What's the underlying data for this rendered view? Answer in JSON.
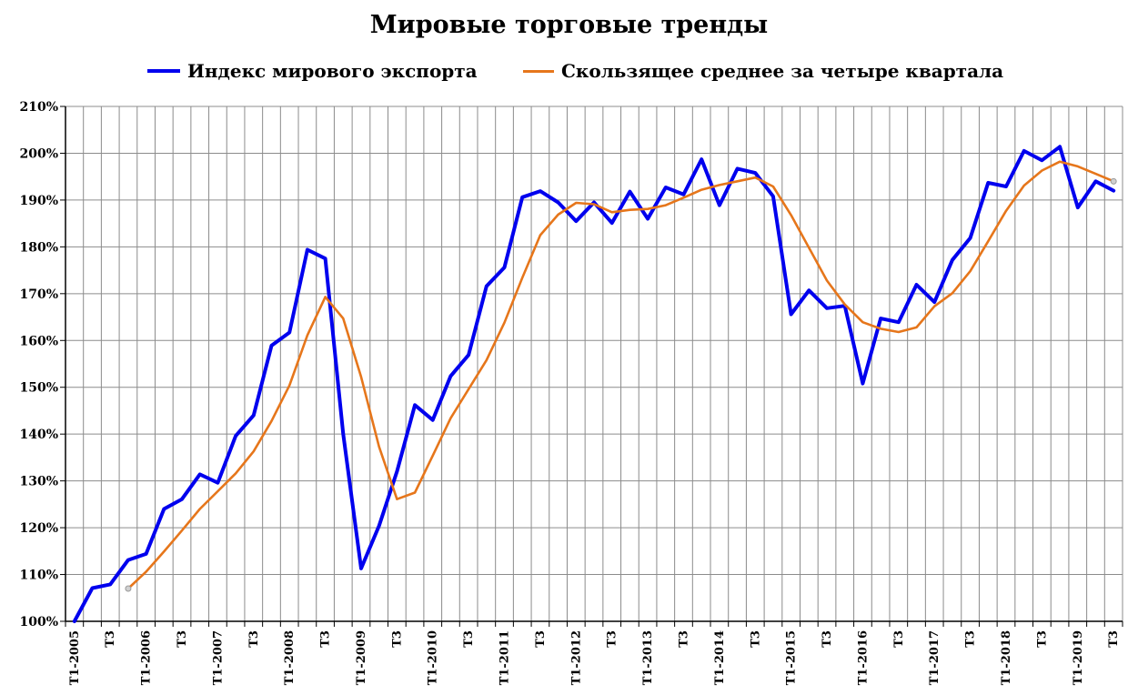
{
  "chart_data": {
    "type": "line",
    "title": "Мировые торговые тренды",
    "xlabel": "",
    "ylabel": "",
    "ylim": [
      100,
      210
    ],
    "yticks": [
      "100%",
      "110%",
      "120%",
      "130%",
      "140%",
      "150%",
      "160%",
      "170%",
      "180%",
      "190%",
      "200%",
      "210%"
    ],
    "grid": true,
    "legend_position": "top",
    "categories": [
      "Т1-2005",
      "Т2-2005",
      "Т3-2005",
      "Т4-2005",
      "Т1-2006",
      "Т2-2006",
      "Т3-2006",
      "Т4-2006",
      "Т1-2007",
      "Т2-2007",
      "Т3-2007",
      "Т4-2007",
      "Т1-2008",
      "Т2-2008",
      "Т3-2008",
      "Т4-2008",
      "Т1-2009",
      "Т2-2009",
      "Т3-2009",
      "Т4-2009",
      "Т1-2010",
      "Т2-2010",
      "Т3-2010",
      "Т4-2010",
      "Т1-2011",
      "Т2-2011",
      "Т3-2011",
      "Т4-2011",
      "Т1-2012",
      "Т2-2012",
      "Т3-2012",
      "Т4-2012",
      "Т1-2013",
      "Т2-2013",
      "Т3-2013",
      "Т4-2013",
      "Т1-2014",
      "Т2-2014",
      "Т3-2014",
      "Т4-2014",
      "Т1-2015",
      "Т2-2015",
      "Т3-2015",
      "Т4-2015",
      "Т1-2016",
      "Т2-2016",
      "Т3-2016",
      "Т4-2016",
      "Т1-2017",
      "Т2-2017",
      "Т3-2017",
      "Т4-2017",
      "Т1-2018",
      "Т2-2018",
      "Т3-2018",
      "Т4-2018",
      "Т1-2019",
      "Т2-2019",
      "Т3-2019"
    ],
    "x_tick_labels": [
      "Т1-2005",
      "",
      "Т3",
      "",
      "Т1-2006",
      "",
      "Т3",
      "",
      "Т1-2007",
      "",
      "Т3",
      "",
      "Т1-2008",
      "",
      "Т3",
      "",
      "Т1-2009",
      "",
      "Т3",
      "",
      "Т1-2010",
      "",
      "Т3",
      "",
      "Т1-2011",
      "",
      "Т3",
      "",
      "Т1-2012",
      "",
      "Т3",
      "",
      "Т1-2013",
      "",
      "Т3",
      "",
      "Т1-2014",
      "",
      "Т3",
      "",
      "Т1-2015",
      "",
      "Т3",
      "",
      "Т1-2016",
      "",
      "Т3",
      "",
      "Т1-2017",
      "",
      "Т3",
      "",
      "Т1-2018",
      "",
      "Т3",
      "",
      "Т1-2019",
      "",
      "Т3"
    ],
    "series": [
      {
        "name": "Индекс мирового экспорта",
        "color": "#0000ee",
        "values": [
          100.0,
          107.1,
          107.9,
          113.1,
          114.4,
          124.0,
          126.1,
          131.4,
          129.6,
          139.6,
          144.0,
          158.9,
          161.7,
          179.4,
          177.5,
          140.0,
          111.3,
          120.4,
          132.0,
          146.2,
          143.0,
          152.4,
          156.9,
          171.6,
          175.6,
          190.6,
          191.9,
          189.5,
          185.5,
          189.5,
          185.1,
          191.8,
          186.0,
          192.7,
          191.2,
          198.7,
          188.9,
          196.7,
          195.8,
          190.8,
          165.6,
          170.7,
          166.9,
          167.4,
          150.8,
          164.7,
          163.9,
          171.9,
          168.2,
          177.2,
          181.9,
          193.7,
          192.9,
          200.5,
          198.5,
          201.4,
          188.4,
          194.0,
          192.0
        ]
      },
      {
        "name": "Скользящее среднее за четыре квартала",
        "color": "#e6761b",
        "values": [
          null,
          null,
          null,
          107.0,
          110.6,
          114.9,
          119.4,
          124.0,
          127.8,
          131.6,
          136.3,
          142.8,
          150.4,
          161.1,
          169.3,
          164.7,
          152.2,
          137.3,
          126.1,
          127.5,
          135.4,
          143.4,
          149.6,
          155.8,
          163.8,
          173.4,
          182.5,
          186.9,
          189.4,
          189.1,
          187.4,
          187.9,
          188.1,
          188.9,
          190.5,
          192.2,
          193.2,
          194.0,
          194.8,
          192.9,
          186.8,
          179.8,
          172.8,
          167.7,
          163.9,
          162.5,
          161.8,
          162.8,
          167.3,
          170.1,
          174.8,
          181.2,
          187.7,
          193.1,
          196.3,
          198.2,
          197.2,
          195.6,
          194.0
        ]
      }
    ],
    "marker_color": "#999999"
  }
}
